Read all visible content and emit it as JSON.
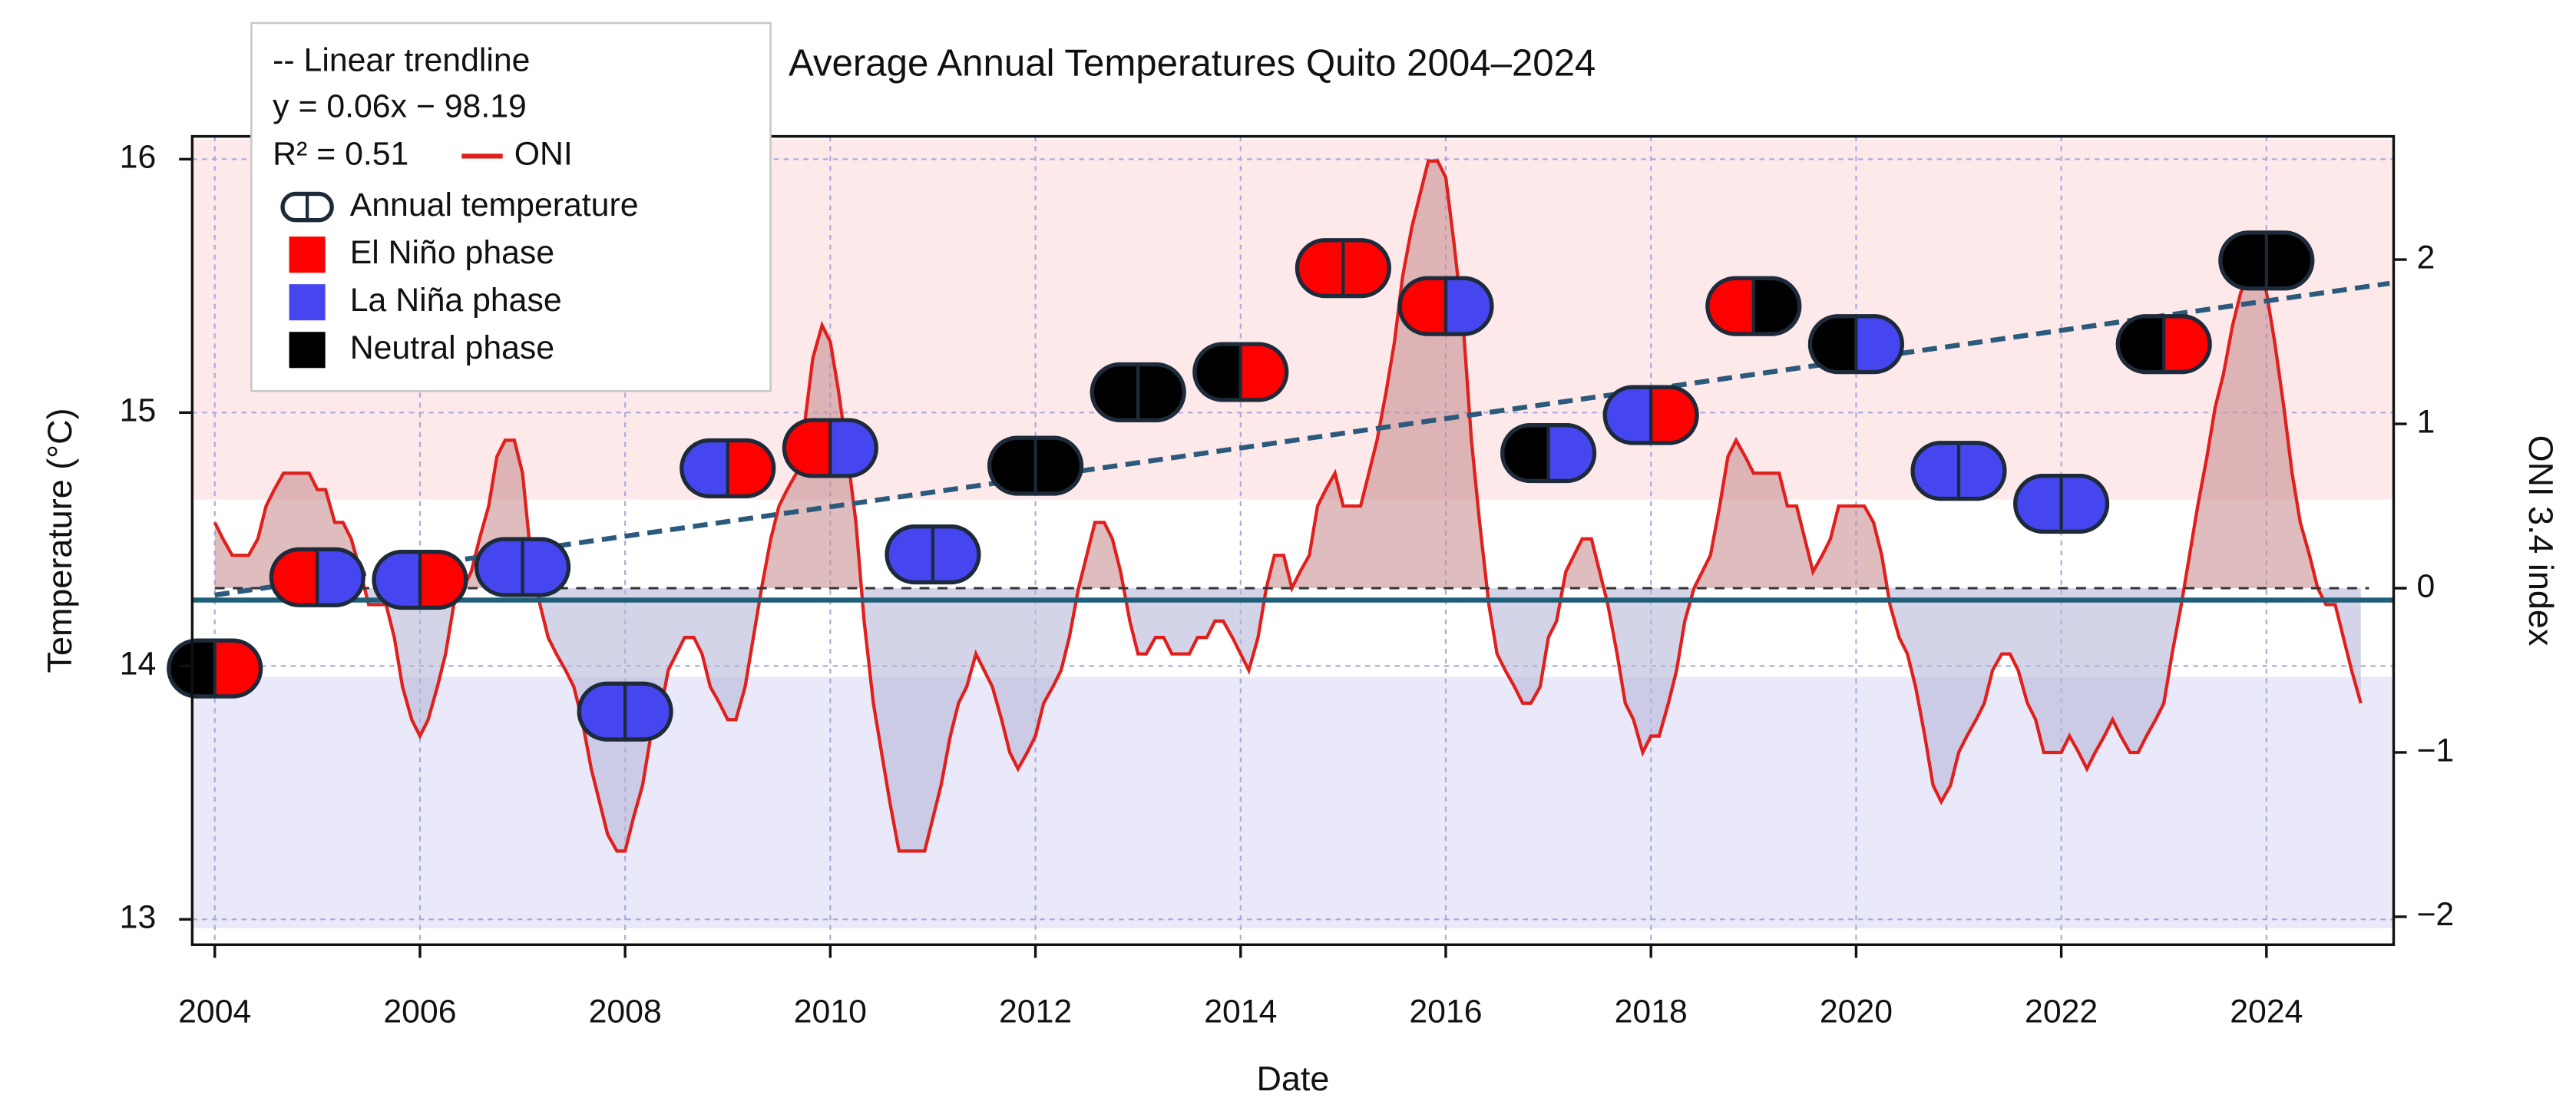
{
  "chart_data": {
    "type": "combo",
    "title": "Average Annual Temperatures Quito 2004–2024",
    "xlabel": "Date",
    "ylabel": "Temperature (°C)",
    "y2label": "ONI 3.4 index",
    "xlim": [
      2003.78,
      2025.24
    ],
    "ylim": [
      12.9,
      16.09
    ],
    "y2lim": [
      -2.17,
      2.75
    ],
    "xticks": [
      2004,
      2006,
      2008,
      2010,
      2012,
      2014,
      2016,
      2018,
      2020,
      2022,
      2024
    ],
    "yticks": [
      13,
      14,
      15,
      16
    ],
    "y2ticks": [
      {
        "value": -2,
        "label": "−2"
      },
      {
        "value": -1,
        "label": "−1"
      },
      0,
      1,
      2
    ],
    "grid": true,
    "bands": [
      {
        "y2": [
          0.54,
          2.73
        ],
        "color": "#fde8ea"
      },
      {
        "y2": [
          -2.07,
          -0.54
        ],
        "color": "#e9e9f9"
      }
    ],
    "trendline": {
      "name": "-- Linear trendline",
      "equation": "y = 0.06x − 98.19",
      "r2": "R² = 0.51",
      "x": [
        2004,
        2025.2
      ],
      "values": [
        14.28,
        15.51
      ],
      "color": "#2c5a7c"
    },
    "reference_line": {
      "value": 14.26,
      "color": "#1f5f7a"
    },
    "zero_line": {
      "value": 0,
      "axis": "y2",
      "x": [
        2004,
        2025
      ],
      "color": "#333333"
    },
    "phase_legend": [
      {
        "name": "El Niño phase",
        "color": "#ff0000"
      },
      {
        "name": "La Niña phase",
        "color": "#4646f0"
      },
      {
        "name": "Neutral phase",
        "color": "#000000"
      }
    ],
    "series": [
      {
        "name": "Annual temperature",
        "type": "pill",
        "outline": "#1c2a3a",
        "x": [
          2004,
          2005,
          2006,
          2007,
          2008,
          2009,
          2010,
          2011,
          2012,
          2013,
          2014,
          2015,
          2016,
          2017,
          2018,
          2019,
          2020,
          2021,
          2022,
          2023,
          2024
        ],
        "values": [
          13.99,
          14.35,
          14.34,
          14.39,
          13.82,
          14.78,
          14.86,
          14.44,
          14.79,
          15.08,
          15.16,
          15.57,
          15.42,
          14.84,
          14.99,
          15.42,
          15.27,
          14.77,
          14.64,
          15.27,
          15.6
        ],
        "marker_colors": [
          [
            "#000000",
            "#ff0000"
          ],
          [
            "#ff0000",
            "#4646f0"
          ],
          [
            "#4646f0",
            "#ff0000"
          ],
          [
            "#4646f0",
            "#4646f0"
          ],
          [
            "#4646f0",
            "#4646f0"
          ],
          [
            "#4646f0",
            "#ff0000"
          ],
          [
            "#ff0000",
            "#4646f0"
          ],
          [
            "#4646f0",
            "#4646f0"
          ],
          [
            "#000000",
            "#000000"
          ],
          [
            "#000000",
            "#000000"
          ],
          [
            "#000000",
            "#ff0000"
          ],
          [
            "#ff0000",
            "#ff0000"
          ],
          [
            "#ff0000",
            "#4646f0"
          ],
          [
            "#000000",
            "#4646f0"
          ],
          [
            "#4646f0",
            "#ff0000"
          ],
          [
            "#ff0000",
            "#000000"
          ],
          [
            "#000000",
            "#4646f0"
          ],
          [
            "#4646f0",
            "#4646f0"
          ],
          [
            "#4646f0",
            "#4646f0"
          ],
          [
            "#000000",
            "#ff0000"
          ],
          [
            "#000000",
            "#000000"
          ]
        ]
      },
      {
        "name": "ONI",
        "type": "area-line",
        "axis": "y2",
        "color": "#e0201c",
        "fill_above": "#c98f92",
        "fill_below": "#b8b8d8",
        "x": [
          2004.0,
          2004.08,
          2004.17,
          2004.25,
          2004.33,
          2004.42,
          2004.5,
          2004.58,
          2004.67,
          2004.75,
          2004.83,
          2004.92,
          2005.0,
          2005.08,
          2005.17,
          2005.25,
          2005.33,
          2005.42,
          2005.5,
          2005.58,
          2005.67,
          2005.75,
          2005.83,
          2005.92,
          2006.0,
          2006.08,
          2006.17,
          2006.25,
          2006.33,
          2006.42,
          2006.5,
          2006.58,
          2006.67,
          2006.75,
          2006.83,
          2006.92,
          2007.0,
          2007.08,
          2007.17,
          2007.25,
          2007.33,
          2007.42,
          2007.5,
          2007.58,
          2007.67,
          2007.75,
          2007.83,
          2007.92,
          2008.0,
          2008.08,
          2008.17,
          2008.25,
          2008.33,
          2008.42,
          2008.5,
          2008.58,
          2008.67,
          2008.75,
          2008.83,
          2008.92,
          2009.0,
          2009.08,
          2009.17,
          2009.25,
          2009.33,
          2009.42,
          2009.5,
          2009.58,
          2009.67,
          2009.75,
          2009.83,
          2009.92,
          2010.0,
          2010.08,
          2010.17,
          2010.25,
          2010.33,
          2010.42,
          2010.5,
          2010.58,
          2010.67,
          2010.75,
          2010.83,
          2010.92,
          2011.0,
          2011.08,
          2011.17,
          2011.25,
          2011.33,
          2011.42,
          2011.5,
          2011.58,
          2011.67,
          2011.75,
          2011.83,
          2011.92,
          2012.0,
          2012.08,
          2012.17,
          2012.25,
          2012.33,
          2012.42,
          2012.5,
          2012.58,
          2012.67,
          2012.75,
          2012.83,
          2012.92,
          2013.0,
          2013.08,
          2013.17,
          2013.25,
          2013.33,
          2013.42,
          2013.5,
          2013.58,
          2013.67,
          2013.75,
          2013.83,
          2013.92,
          2014.0,
          2014.08,
          2014.17,
          2014.25,
          2014.33,
          2014.42,
          2014.5,
          2014.58,
          2014.67,
          2014.75,
          2014.83,
          2014.92,
          2015.0,
          2015.08,
          2015.17,
          2015.25,
          2015.33,
          2015.42,
          2015.5,
          2015.58,
          2015.67,
          2015.75,
          2015.83,
          2015.92,
          2016.0,
          2016.08,
          2016.17,
          2016.25,
          2016.33,
          2016.42,
          2016.5,
          2016.58,
          2016.67,
          2016.75,
          2016.83,
          2016.92,
          2017.0,
          2017.08,
          2017.17,
          2017.25,
          2017.33,
          2017.42,
          2017.5,
          2017.58,
          2017.67,
          2017.75,
          2017.83,
          2017.92,
          2018.0,
          2018.08,
          2018.17,
          2018.25,
          2018.33,
          2018.42,
          2018.5,
          2018.58,
          2018.67,
          2018.75,
          2018.83,
          2018.92,
          2019.0,
          2019.08,
          2019.17,
          2019.25,
          2019.33,
          2019.42,
          2019.5,
          2019.58,
          2019.67,
          2019.75,
          2019.83,
          2019.92,
          2020.0,
          2020.08,
          2020.17,
          2020.25,
          2020.33,
          2020.42,
          2020.5,
          2020.58,
          2020.67,
          2020.75,
          2020.83,
          2020.92,
          2021.0,
          2021.08,
          2021.17,
          2021.25,
          2021.33,
          2021.42,
          2021.5,
          2021.58,
          2021.67,
          2021.75,
          2021.83,
          2021.92,
          2022.0,
          2022.08,
          2022.17,
          2022.25,
          2022.33,
          2022.42,
          2022.5,
          2022.58,
          2022.67,
          2022.75,
          2022.83,
          2022.92,
          2023.0,
          2023.08,
          2023.17,
          2023.25,
          2023.33,
          2023.42,
          2023.5,
          2023.58,
          2023.67,
          2023.75,
          2023.83,
          2023.92,
          2024.0,
          2024.08,
          2024.17,
          2024.25,
          2024.33,
          2024.42,
          2024.5,
          2024.58,
          2024.67,
          2024.75,
          2024.83,
          2024.92
        ],
        "values": [
          0.4,
          0.3,
          0.2,
          0.2,
          0.2,
          0.3,
          0.5,
          0.6,
          0.7,
          0.7,
          0.7,
          0.7,
          0.6,
          0.6,
          0.4,
          0.4,
          0.3,
          0.1,
          -0.1,
          -0.1,
          -0.1,
          -0.3,
          -0.6,
          -0.8,
          -0.9,
          -0.8,
          -0.6,
          -0.4,
          -0.1,
          0,
          0.1,
          0.3,
          0.5,
          0.8,
          0.9,
          0.9,
          0.7,
          0.2,
          -0.1,
          -0.3,
          -0.4,
          -0.5,
          -0.6,
          -0.8,
          -1.1,
          -1.3,
          -1.5,
          -1.6,
          -1.6,
          -1.4,
          -1.2,
          -0.9,
          -0.8,
          -0.5,
          -0.4,
          -0.3,
          -0.3,
          -0.4,
          -0.6,
          -0.7,
          -0.8,
          -0.8,
          -0.6,
          -0.3,
          0,
          0.3,
          0.5,
          0.6,
          0.7,
          1.0,
          1.4,
          1.6,
          1.5,
          1.2,
          0.8,
          0.4,
          -0.2,
          -0.7,
          -1.0,
          -1.3,
          -1.6,
          -1.6,
          -1.6,
          -1.6,
          -1.4,
          -1.2,
          -0.9,
          -0.7,
          -0.6,
          -0.4,
          -0.5,
          -0.6,
          -0.8,
          -1.0,
          -1.1,
          -1.0,
          -0.9,
          -0.7,
          -0.6,
          -0.5,
          -0.3,
          0,
          0.2,
          0.4,
          0.4,
          0.3,
          0.1,
          -0.2,
          -0.4,
          -0.4,
          -0.3,
          -0.3,
          -0.4,
          -0.4,
          -0.4,
          -0.3,
          -0.3,
          -0.2,
          -0.2,
          -0.3,
          -0.4,
          -0.5,
          -0.3,
          0,
          0.2,
          0.2,
          0,
          0.1,
          0.2,
          0.5,
          0.6,
          0.7,
          0.5,
          0.5,
          0.5,
          0.7,
          0.9,
          1.2,
          1.5,
          1.9,
          2.2,
          2.4,
          2.6,
          2.6,
          2.5,
          2.1,
          1.6,
          0.9,
          0.4,
          -0.1,
          -0.4,
          -0.5,
          -0.6,
          -0.7,
          -0.7,
          -0.6,
          -0.3,
          -0.2,
          0.1,
          0.2,
          0.3,
          0.3,
          0.1,
          -0.1,
          -0.4,
          -0.7,
          -0.8,
          -1.0,
          -0.9,
          -0.9,
          -0.7,
          -0.5,
          -0.2,
          0,
          0.1,
          0.2,
          0.5,
          0.8,
          0.9,
          0.8,
          0.7,
          0.7,
          0.7,
          0.7,
          0.5,
          0.5,
          0.3,
          0.1,
          0.2,
          0.3,
          0.5,
          0.5,
          0.5,
          0.5,
          0.4,
          0.2,
          -0.1,
          -0.3,
          -0.4,
          -0.6,
          -0.9,
          -1.2,
          -1.3,
          -1.2,
          -1.0,
          -0.9,
          -0.8,
          -0.7,
          -0.5,
          -0.4,
          -0.4,
          -0.5,
          -0.7,
          -0.8,
          -1.0,
          -1.0,
          -1.0,
          -0.9,
          -1.0,
          -1.1,
          -1.0,
          -0.9,
          -0.8,
          -0.9,
          -1.0,
          -1.0,
          -0.9,
          -0.8,
          -0.7,
          -0.4,
          -0.1,
          0.2,
          0.5,
          0.8,
          1.1,
          1.3,
          1.6,
          1.8,
          1.9,
          2.0,
          1.8,
          1.5,
          1.1,
          0.7,
          0.4,
          0.2,
          0,
          -0.1,
          -0.1,
          -0.3,
          -0.5,
          -0.7
        ]
      }
    ]
  }
}
